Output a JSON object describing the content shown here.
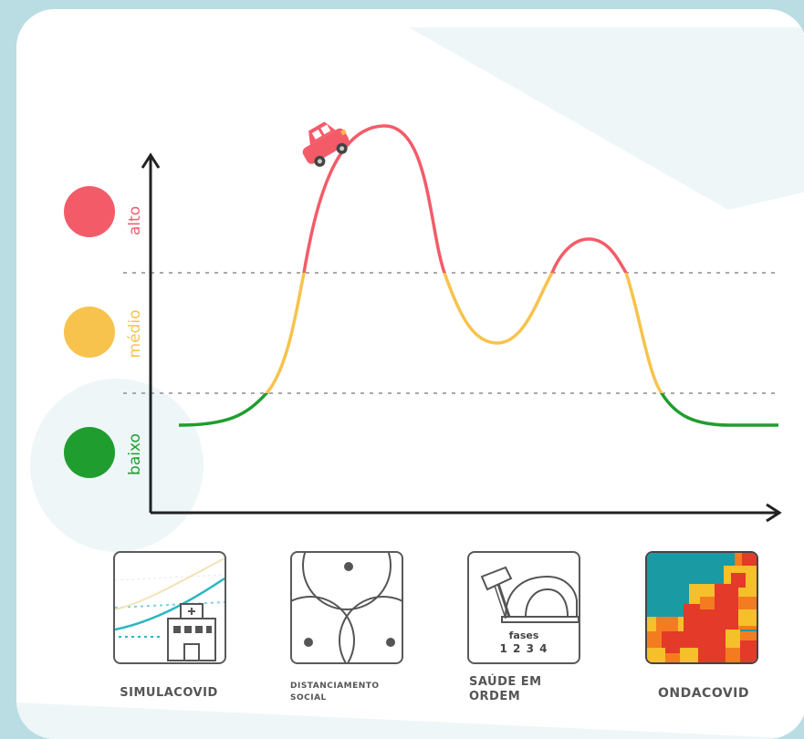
{
  "levels": {
    "high": {
      "label": "alto",
      "color": "#f45b69"
    },
    "medium": {
      "label": "médio",
      "color": "#f7c34d"
    },
    "low": {
      "label": "baixo",
      "color": "#1f9e2f"
    }
  },
  "fase_numbers": "1 2 3 4",
  "fase_title": "fases",
  "tools": [
    {
      "name": "simulacovid",
      "label": "SIMULACOVID"
    },
    {
      "name": "distanciamento",
      "label_line1": "DISTANCIAMENTO",
      "label_line2": "SOCIAL"
    },
    {
      "name": "saude",
      "label_line1": "SAÚDE EM",
      "label_line2": "ORDEM"
    },
    {
      "name": "ondacovid",
      "label": "ONDACOVID"
    }
  ]
}
